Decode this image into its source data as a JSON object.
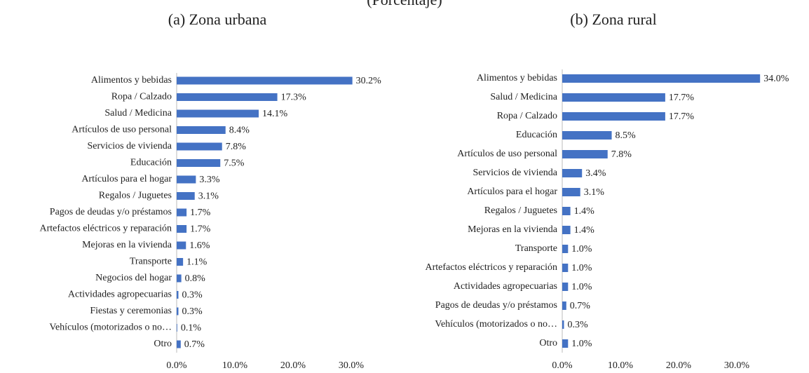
{
  "header": {
    "title": "(Porcentaje)"
  },
  "chart_data": [
    {
      "type": "barh",
      "title": "(a) Zona urbana",
      "color": "#4472c4",
      "categories": [
        "Alimentos y bebidas",
        "Ropa / Calzado",
        "Salud / Medicina",
        "Artículos de uso personal",
        "Servicios de vivienda",
        "Educación",
        "Artículos para el hogar",
        "Regalos / Juguetes",
        "Pagos de deudas y/o préstamos",
        "Artefactos eléctricos y reparación",
        "Mejoras en la vivienda",
        "Transporte",
        "Negocios del hogar",
        "Actividades agropecuarias",
        "Fiestas y ceremonias",
        "Vehículos (motorizados o no…",
        "Otro"
      ],
      "values": [
        30.2,
        17.3,
        14.1,
        8.4,
        7.8,
        7.5,
        3.3,
        3.1,
        1.7,
        1.7,
        1.6,
        1.1,
        0.8,
        0.3,
        0.3,
        0.1,
        0.7
      ],
      "value_labels": [
        "30.2%",
        "17.3%",
        "14.1%",
        "8.4%",
        "7.8%",
        "7.5%",
        "3.3%",
        "3.1%",
        "1.7%",
        "1.7%",
        "1.6%",
        "1.1%",
        "0.8%",
        "0.3%",
        "0.3%",
        "0.1%",
        "0.7%"
      ],
      "xlim": [
        0,
        35
      ],
      "xticks": [
        {
          "value": 0,
          "label": "0.0%"
        },
        {
          "value": 10,
          "label": "10.0%"
        },
        {
          "value": 20,
          "label": "20.0%"
        },
        {
          "value": 30,
          "label": "30.0%"
        }
      ]
    },
    {
      "type": "barh",
      "title": "(b) Zona rural",
      "color": "#4472c4",
      "categories": [
        "Alimentos y bebidas",
        "Salud / Medicina",
        "Ropa / Calzado",
        "Educación",
        "Artículos de uso personal",
        "Servicios de vivienda",
        "Artículos para el hogar",
        "Regalos / Juguetes",
        "Mejoras en la vivienda",
        "Transporte",
        "Artefactos eléctricos y reparación",
        "Actividades agropecuarias",
        "Pagos de deudas y/o préstamos",
        "Vehículos (motorizados o no…",
        "Otro"
      ],
      "values": [
        34.0,
        17.7,
        17.7,
        8.5,
        7.8,
        3.4,
        3.1,
        1.4,
        1.4,
        1.0,
        1.0,
        1.0,
        0.7,
        0.3,
        1.0
      ],
      "value_labels": [
        "34.0%",
        "17.7%",
        "17.7%",
        "8.5%",
        "7.8%",
        "3.4%",
        "3.1%",
        "1.4%",
        "1.4%",
        "1.0%",
        "1.0%",
        "1.0%",
        "0.7%",
        "0.3%",
        "1.0%"
      ],
      "xlim": [
        0,
        35
      ],
      "xticks": [
        {
          "value": 0,
          "label": "0.0%"
        },
        {
          "value": 10,
          "label": "10.0%"
        },
        {
          "value": 20,
          "label": "20.0%"
        },
        {
          "value": 30,
          "label": "30.0%"
        }
      ]
    }
  ]
}
